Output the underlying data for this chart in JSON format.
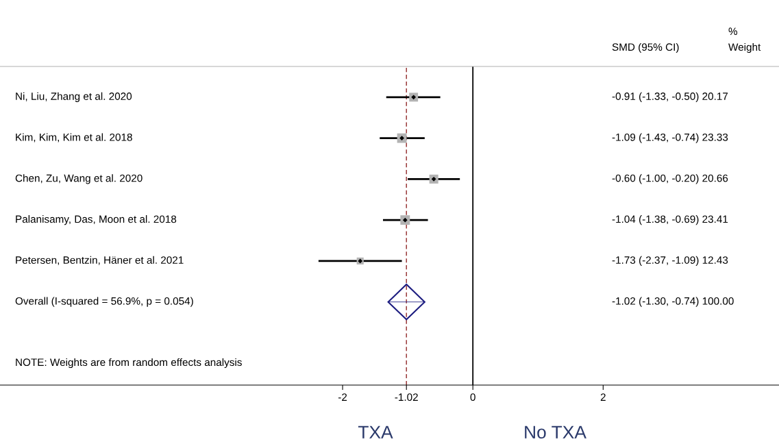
{
  "chart_data": {
    "type": "scatter",
    "orientation": "horizontal",
    "categories": [
      "Ni, Liu, Zhang et al. 2020",
      "Kim, Kim, Kim et al. 2018",
      "Chen, Zu, Wang et al. 2020",
      "Palanisamy, Das, Moon et al. 2018",
      "Petersen, Bentzin, Häner et al. 2021",
      "Overall (I-squared = 56.9%, p = 0.054)"
    ],
    "series": [
      {
        "color": "#b3b3b3",
        "marker": "square",
        "values": [
          -0.91,
          -1.09,
          -0.6,
          -1.04,
          -1.73,
          null
        ],
        "errors": [
          [
            -1.33,
            -0.5
          ],
          [
            -1.43,
            -0.74
          ],
          [
            -1.0,
            -0.2
          ],
          [
            -1.38,
            -0.69
          ],
          [
            -2.37,
            -1.09
          ],
          null
        ],
        "sizes": [
          0.862,
          0.997,
          0.883,
          1,
          0.531,
          null
        ]
      },
      {
        "color": "#1c1c80",
        "marker": "diamond",
        "values": [
          null,
          null,
          null,
          null,
          null,
          -1.02
        ],
        "errors": [
          null,
          null,
          null,
          null,
          null,
          [
            -1.3,
            -0.74
          ]
        ]
      }
    ],
    "xlim": [
      -7.26,
      4.7
    ],
    "xticks": [
      -2,
      -1.02,
      0,
      2
    ],
    "ref_lines": [
      {
        "axis": "x",
        "value": 0,
        "color": "#000000",
        "line_style": "solid"
      },
      {
        "axis": "x",
        "value": -1.02,
        "color": "#9b3b3b",
        "line_style": "dashed"
      }
    ],
    "annotations": [
      "SMD (95% CI)",
      "%",
      "Weight",
      "NOTE: Weights are from random effects analysis",
      "TXA",
      "No TXA",
      "-0.91 (-1.33, -0.50) 20.17",
      "-1.09 (-1.43, -0.74) 23.33",
      "-0.60 (-1.00, -0.20) 20.66",
      "-1.04 (-1.38, -0.69) 23.41",
      "-1.73 (-2.37, -1.09) 12.43",
      "-1.02 (-1.30, -0.74) 100.00"
    ],
    "grid": false,
    "legend": false
  }
}
